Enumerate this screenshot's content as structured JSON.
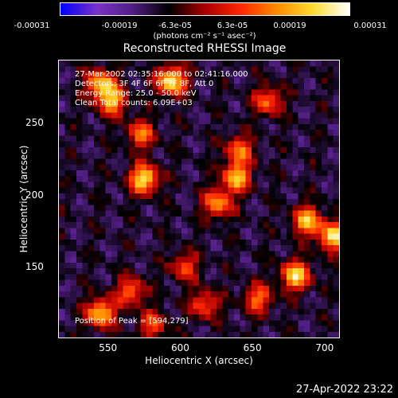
{
  "colorbar": {
    "tick_labels": [
      "-0.00031",
      "-0.00019",
      "-6.3e-05",
      "6.3e-05",
      "0.00019",
      "0.00031"
    ],
    "units": "(photons cm⁻² s⁻¹ asec⁻²)",
    "range": [
      -0.00031,
      0.00031
    ]
  },
  "chart_data": {
    "type": "heatmap",
    "title": "Reconstructed RHESSI Image",
    "xlabel": "Heliocentric X (arcsec)",
    "ylabel": "Heliocentric Y (arcsec)",
    "xlim": [
      516,
      710
    ],
    "ylim": [
      101,
      293
    ],
    "xticks": [
      550,
      600,
      650,
      700
    ],
    "yticks": [
      150,
      200,
      250
    ],
    "peak_position": [
      594,
      279
    ],
    "bright_spots": [
      {
        "x": 594,
        "y": 279,
        "intensity": 1.0
      },
      {
        "x": 545,
        "y": 277,
        "intensity": 0.8
      },
      {
        "x": 553,
        "y": 265,
        "intensity": 0.75
      },
      {
        "x": 573,
        "y": 242,
        "intensity": 0.6
      },
      {
        "x": 575,
        "y": 211,
        "intensity": 0.95
      },
      {
        "x": 626,
        "y": 194,
        "intensity": 0.7
      },
      {
        "x": 639,
        "y": 212,
        "intensity": 0.8
      },
      {
        "x": 641,
        "y": 231,
        "intensity": 0.6
      },
      {
        "x": 661,
        "y": 265,
        "intensity": 0.6
      },
      {
        "x": 688,
        "y": 182,
        "intensity": 0.8
      },
      {
        "x": 706,
        "y": 171,
        "intensity": 0.9
      },
      {
        "x": 680,
        "y": 144,
        "intensity": 0.9
      },
      {
        "x": 654,
        "y": 128,
        "intensity": 0.6
      },
      {
        "x": 617,
        "y": 124,
        "intensity": 0.55
      },
      {
        "x": 545,
        "y": 118,
        "intensity": 0.85
      },
      {
        "x": 566,
        "y": 133,
        "intensity": 0.6
      },
      {
        "x": 603,
        "y": 150,
        "intensity": 0.5
      },
      {
        "x": 581,
        "y": 110,
        "intensity": 0.5
      }
    ],
    "colormap": [
      "#0000ff",
      "#7a32c8",
      "#501e82",
      "#000000",
      "#aa0000",
      "#ff2800",
      "#ff8c00",
      "#ffdc32",
      "#ffffff"
    ]
  },
  "annotations": {
    "time_range": "27-Mar-2002 02:35:16.000 to 02:41:16.000",
    "detectors": "Detectors: 3F 4F 6F 6F 7F 8F, Att 0",
    "energy": "Energy Range: 25.0 - 50.0 keV",
    "clean": "Clean    Total counts: 6.09E+03",
    "peak": "Position of Peak = [594,279]"
  },
  "footer": {
    "date": "27-Apr-2022 23:22"
  }
}
